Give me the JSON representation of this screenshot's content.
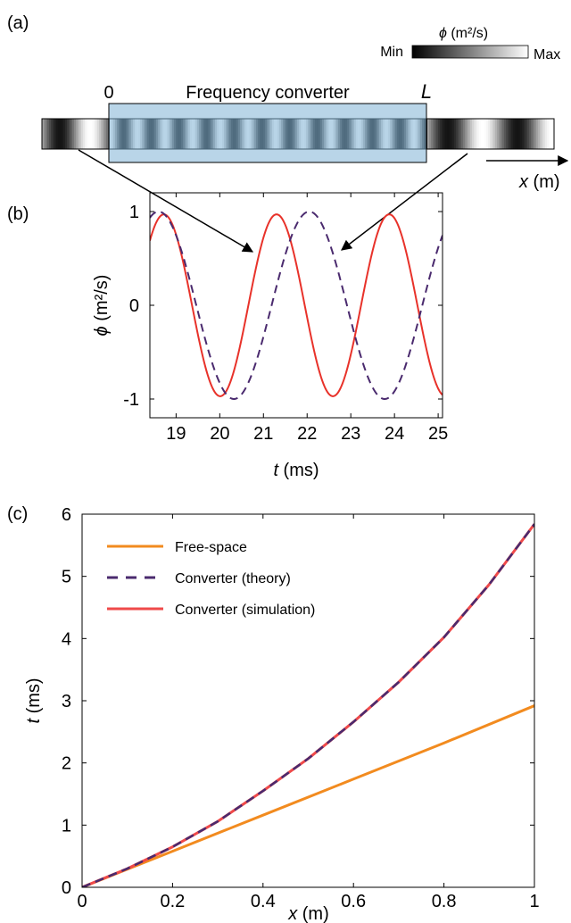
{
  "panel_a": {
    "label": "(a)",
    "colorbar": {
      "title_symbol": "ϕ",
      "title_units": " (m²/s)",
      "min_label": "Min",
      "max_label": "Max"
    },
    "converter_label": "Frequency converter",
    "start_label": "0",
    "end_label": "L",
    "axis_label_symbol": "x",
    "axis_label_units": " (m)"
  },
  "chart_data": [
    {
      "panel": "(b)",
      "type": "line",
      "xlabel_symbol": "t",
      "xlabel_units": " (ms)",
      "ylabel_symbol": "ϕ",
      "ylabel_units": " (m²/s)",
      "xlim": [
        18.4,
        25.1
      ],
      "ylim": [
        -1.2,
        1.2
      ],
      "xticks": [
        19,
        20,
        21,
        22,
        23,
        24,
        25
      ],
      "yticks": [
        -1,
        0,
        1
      ],
      "series": [
        {
          "style": "solid",
          "color": "#e8322a",
          "amplitude": 0.97,
          "period_ms": 2.58,
          "peak_ms": 21.3
        },
        {
          "style": "dashed",
          "color": "#4a2a6e",
          "amplitude": 1.0,
          "period_ms": 3.45,
          "peak_ms": 22.05
        }
      ]
    },
    {
      "panel": "(c)",
      "type": "line",
      "xlabel_symbol": "x",
      "xlabel_units": " (m)",
      "ylabel_symbol": "t",
      "ylabel_units": " (ms)",
      "xlim": [
        0,
        1
      ],
      "ylim": [
        0,
        6
      ],
      "xticks": [
        "0",
        "0.2",
        "0.4",
        "0.6",
        "0.8",
        "1"
      ],
      "yticks": [
        "0",
        "1",
        "2",
        "3",
        "4",
        "5",
        "6"
      ],
      "legend_position": "top-left",
      "series": [
        {
          "name": "Free-space",
          "style": "solid",
          "color": "#f28b1f",
          "x": [
            0,
            0.2,
            0.4,
            0.6,
            0.8,
            1.0
          ],
          "y": [
            0,
            0.58,
            1.16,
            1.74,
            2.32,
            2.92
          ]
        },
        {
          "name": "Converter (theory)",
          "style": "dashed",
          "color": "#4a2a6e",
          "x": [
            0,
            0.1,
            0.2,
            0.3,
            0.4,
            0.5,
            0.6,
            0.7,
            0.8,
            0.9,
            1.0
          ],
          "y": [
            0,
            0.3,
            0.65,
            1.06,
            1.55,
            2.07,
            2.66,
            3.3,
            4.02,
            4.87,
            5.84
          ]
        },
        {
          "name": "Converter (simulation)",
          "style": "solid",
          "color": "#ef4a4a",
          "x": [
            0,
            0.1,
            0.2,
            0.3,
            0.4,
            0.5,
            0.6,
            0.7,
            0.8,
            0.9,
            1.0
          ],
          "y": [
            0,
            0.3,
            0.65,
            1.06,
            1.55,
            2.07,
            2.66,
            3.3,
            4.02,
            4.87,
            5.84
          ]
        }
      ]
    }
  ]
}
